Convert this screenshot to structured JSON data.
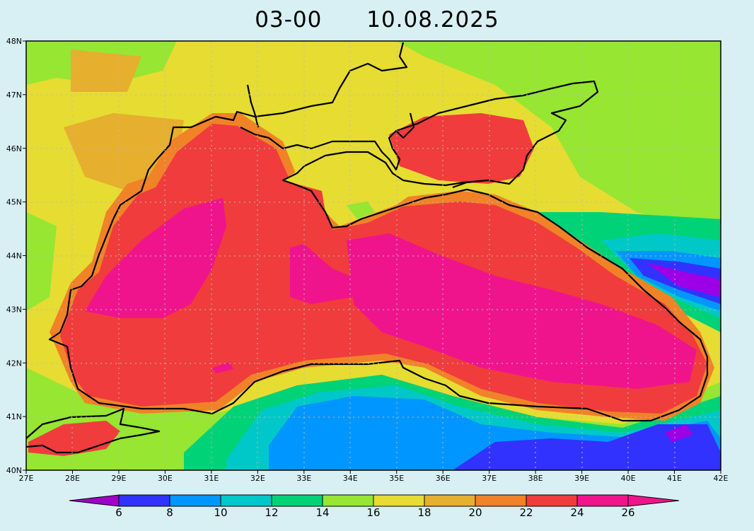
{
  "title": {
    "time": "03-00",
    "date": "10.08.2025"
  },
  "axes": {
    "lat_labels": [
      "48N",
      "47N",
      "46N",
      "45N",
      "44N",
      "43N",
      "42N",
      "41N",
      "40N"
    ],
    "lon_labels": [
      "27E",
      "28E",
      "29E",
      "30E",
      "31E",
      "32E",
      "33E",
      "34E",
      "35E",
      "36E",
      "37E",
      "38E",
      "39E",
      "40E",
      "41E",
      "42E"
    ]
  },
  "colorbar": {
    "labels": [
      "6",
      "8",
      "10",
      "12",
      "14",
      "16",
      "18",
      "20",
      "22",
      "24",
      "26"
    ],
    "colors": [
      "#9d00e6",
      "#3232ff",
      "#0096ff",
      "#00c8c8",
      "#00d278",
      "#96e632",
      "#e6dc32",
      "#e6af2d",
      "#f08228",
      "#f03c3c",
      "#f0148c"
    ],
    "low_color": "#a000c8",
    "high_color": "#f0148c"
  },
  "map": {
    "region": "Black Sea",
    "field_colors": {
      "very_warm": "#f0148c",
      "warm": "#f03c3c",
      "coastal": "#f08228",
      "land_mild": "#e6dc32",
      "land_cool": "#96e632",
      "cool_sea": "#0096ff",
      "cold": "#3232ff"
    }
  }
}
